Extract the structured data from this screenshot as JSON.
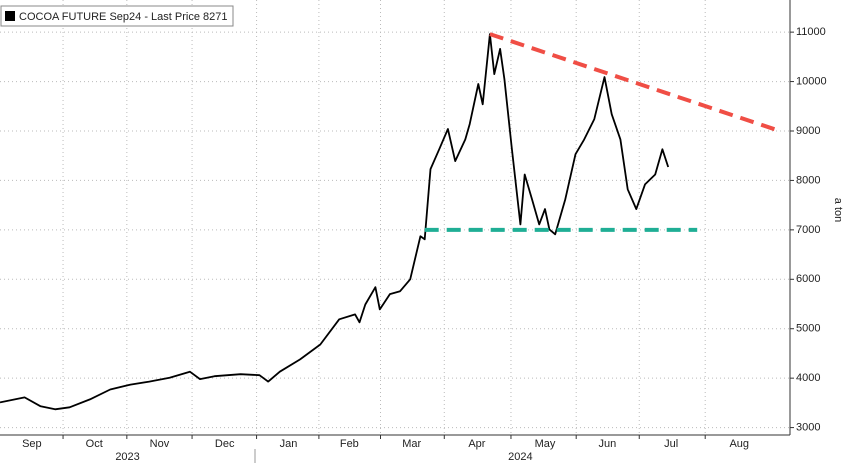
{
  "chart_data": {
    "type": "line",
    "y_label": "a ton",
    "xlim": [
      0,
      54.5
    ],
    "ylim": [
      2850,
      11650
    ],
    "yticks": [
      3000,
      4000,
      5000,
      6000,
      7000,
      8000,
      9000,
      10000,
      11000
    ],
    "xticks": [
      {
        "value": 2.2,
        "label": "Sep"
      },
      {
        "value": 6.5,
        "label": "Oct"
      },
      {
        "value": 11,
        "label": "Nov"
      },
      {
        "value": 15.5,
        "label": "Dec"
      },
      {
        "value": 19.9,
        "label": "Jan"
      },
      {
        "value": 24.1,
        "label": "Feb"
      },
      {
        "value": 28.4,
        "label": "Mar"
      },
      {
        "value": 32.9,
        "label": "Apr"
      },
      {
        "value": 37.6,
        "label": "May"
      },
      {
        "value": 41.9,
        "label": "Jun"
      },
      {
        "value": 46.3,
        "label": "Jul"
      },
      {
        "value": 51,
        "label": "Aug"
      }
    ],
    "year_ticks": [
      {
        "value": 8.8,
        "label": "2023"
      },
      {
        "value": 35.9,
        "label": "2024"
      }
    ],
    "grid": true,
    "series": [
      {
        "name": "COCOA FUTURE Sep24 - Last Price 8271",
        "color": "#000000",
        "x": [
          0,
          1.7,
          2.8,
          3.8,
          4.8,
          6.2,
          7.6,
          9.0,
          10.3,
          11.7,
          13.1,
          13.8,
          14.8,
          16.6,
          17.9,
          18.5,
          19.3,
          20.7,
          22.1,
          23.4,
          24.5,
          24.8,
          25.2,
          25.9,
          26.2,
          26.9,
          27.6,
          28.3,
          29.0,
          29.3,
          29.7,
          30.3,
          30.9,
          31.4,
          32.1,
          32.4,
          33.0,
          33.3,
          33.8,
          34.1,
          34.5,
          34.8,
          35.3,
          35.9,
          36.2,
          36.7,
          37.2,
          37.6,
          37.9,
          38.3,
          39.0,
          39.7,
          40.3,
          41.0,
          41.7,
          42.2,
          42.8,
          43.3,
          43.9,
          44.5,
          45.2,
          45.7,
          46.1
        ],
        "values": [
          3510,
          3610,
          3430,
          3370,
          3410,
          3570,
          3770,
          3870,
          3930,
          4010,
          4130,
          3980,
          4040,
          4080,
          4060,
          3930,
          4130,
          4380,
          4680,
          5190,
          5290,
          5130,
          5490,
          5840,
          5390,
          5700,
          5760,
          6000,
          6870,
          6810,
          8230,
          8630,
          9040,
          8390,
          8830,
          9140,
          9950,
          9540,
          10960,
          10150,
          10660,
          10050,
          8670,
          7110,
          8120,
          7620,
          7110,
          7420,
          7010,
          6910,
          7620,
          8530,
          8830,
          9240,
          10090,
          9340,
          8830,
          7820,
          7420,
          7920,
          8120,
          8630,
          8271
        ]
      },
      {
        "color": "#f04e45",
        "dashed": true,
        "x": [
          33.8,
          53.8
        ],
        "values": [
          10960,
          9000
        ]
      },
      {
        "color": "#1fae95",
        "dashed": true,
        "x": [
          29.3,
          48.1
        ],
        "values": [
          7000,
          7000
        ]
      }
    ]
  }
}
